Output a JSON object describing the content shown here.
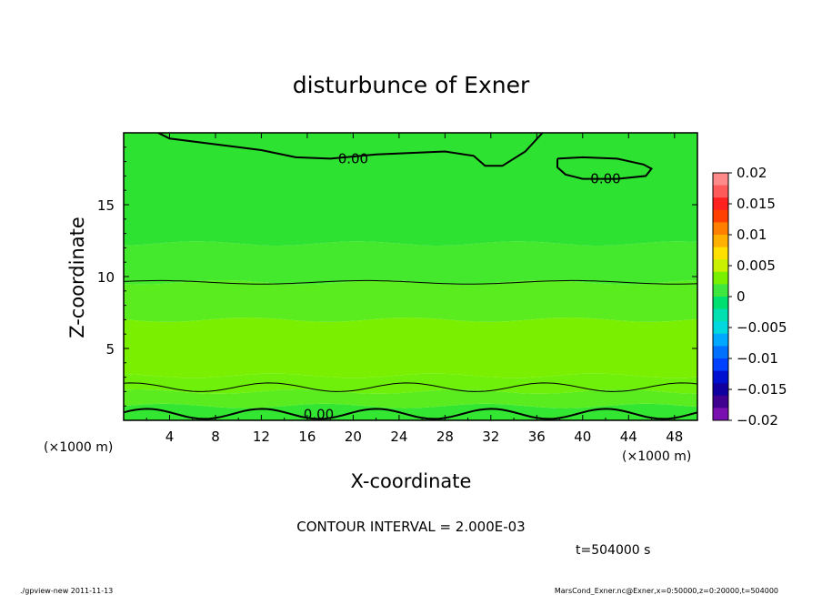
{
  "chart_data": {
    "type": "heatmap",
    "title": "disturbunce of Exner",
    "xlabel": "X-coordinate",
    "ylabel": "Z-coordinate",
    "x_unit": "(×1000 m)",
    "y_unit": "(×1000 m)",
    "xlim": [
      0,
      50
    ],
    "ylim": [
      0,
      20
    ],
    "x_ticks": [
      4,
      8,
      12,
      16,
      20,
      24,
      28,
      32,
      36,
      40,
      44,
      48
    ],
    "y_ticks": [
      5,
      10,
      15
    ],
    "contour_interval_text": "CONTOUR INTERVAL = 2.000E-03",
    "time_text": "t=504000 s",
    "footer_left": "./gpview-new   2011-11-13",
    "footer_right": "MarsCond_Exner.nc@Exner,x=0:50000,z=0:20000,t=504000",
    "contour_labels": [
      {
        "text": "0.00",
        "x": 20,
        "z": 18.2
      },
      {
        "text": "0.00",
        "x": 42,
        "z": 16.8
      },
      {
        "text": "0.00",
        "x": 17,
        "z": 0.4
      }
    ],
    "colorbar": {
      "min": -0.02,
      "max": 0.02,
      "tick_labels": [
        "0.02",
        "0.015",
        "0.01",
        "0.005",
        "0",
        "−0.005",
        "−0.01",
        "−0.015",
        "−0.02"
      ],
      "colors": [
        "#ff8a8a",
        "#ff5a5a",
        "#ff2020",
        "#ff4000",
        "#ff8000",
        "#ffb000",
        "#ffe000",
        "#c8f000",
        "#78f000",
        "#3ee63e",
        "#00e070",
        "#00e0b0",
        "#00d8e0",
        "#00a8ff",
        "#0070ff",
        "#0040ff",
        "#0010d0",
        "#1000a0",
        "#400090",
        "#7a10b0"
      ]
    },
    "bands": [
      {
        "z_min": 0,
        "z_max": 1.0,
        "color": "#32e632",
        "value_range": [
          -0.002,
          0
        ]
      },
      {
        "z_min": 1.0,
        "z_max": 2.0,
        "color": "#5aec1e",
        "value_range": [
          0,
          0.002
        ]
      },
      {
        "z_min": 2.0,
        "z_max": 3.1,
        "color": "#6ef00a",
        "value_range": [
          0,
          0.002
        ]
      },
      {
        "z_min": 3.1,
        "z_max": 7.0,
        "color": "#7af000",
        "value_range": [
          0.002,
          0.004
        ]
      },
      {
        "z_min": 7.0,
        "z_max": 9.6,
        "color": "#5aec1e",
        "value_range": [
          0,
          0.002
        ]
      },
      {
        "z_min": 9.6,
        "z_max": 12.3,
        "color": "#44e82c",
        "value_range": [
          0,
          0.002
        ]
      },
      {
        "z_min": 12.3,
        "z_max": 20,
        "color": "#2ee232",
        "value_range": [
          -0.002,
          0
        ]
      }
    ]
  }
}
